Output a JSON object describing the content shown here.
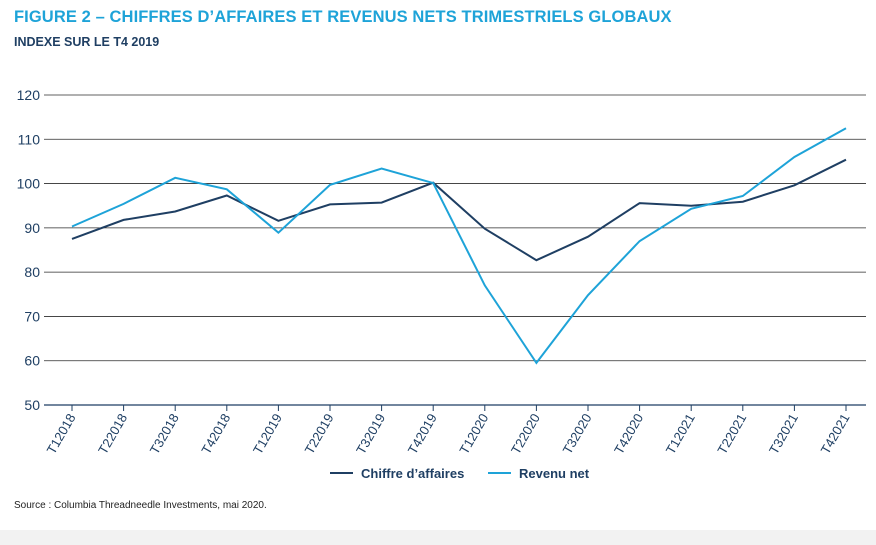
{
  "header": {
    "title": "FIGURE 2 – CHIFFRES D’AFFAIRES ET REVENUS NETS TRIMESTRIELS GLOBAUX",
    "subtitle": "INDEXE SUR LE T4 2019"
  },
  "source": "Source : Columbia Threadneedle Investments, mai 2020.",
  "colors": {
    "title": "#1ea3d8",
    "subtitle": "#1f3f63",
    "series_dark": "#1f3f63",
    "series_light": "#1ea3d8",
    "axis_text": "#1f3f63"
  },
  "chart_data": {
    "type": "line",
    "categories": [
      "T12018",
      "T22018",
      "T32018",
      "T42018",
      "T12019",
      "T22019",
      "T32019",
      "T42019",
      "T12020",
      "T22020",
      "T32020",
      "T42020",
      "T12021",
      "T22021",
      "T32021",
      "T42021"
    ],
    "ylim": [
      50,
      120
    ],
    "yticks": [
      50,
      60,
      70,
      80,
      90,
      100,
      110,
      120
    ],
    "grid": true,
    "legend": "bottom",
    "series": [
      {
        "name": "Chiffre d’affaires",
        "color": "#1f3f63",
        "values": [
          87.5,
          91.8,
          93.7,
          97.3,
          91.6,
          95.3,
          95.7,
          100.2,
          89.8,
          82.7,
          88.0,
          95.6,
          95.0,
          95.9,
          99.6,
          105.4
        ]
      },
      {
        "name": "Revenu net",
        "color": "#1ea3d8",
        "values": [
          90.3,
          95.4,
          101.3,
          98.7,
          88.9,
          99.7,
          103.4,
          100.1,
          77.0,
          59.5,
          74.8,
          87.0,
          94.3,
          97.2,
          106.0,
          112.5
        ]
      }
    ]
  }
}
